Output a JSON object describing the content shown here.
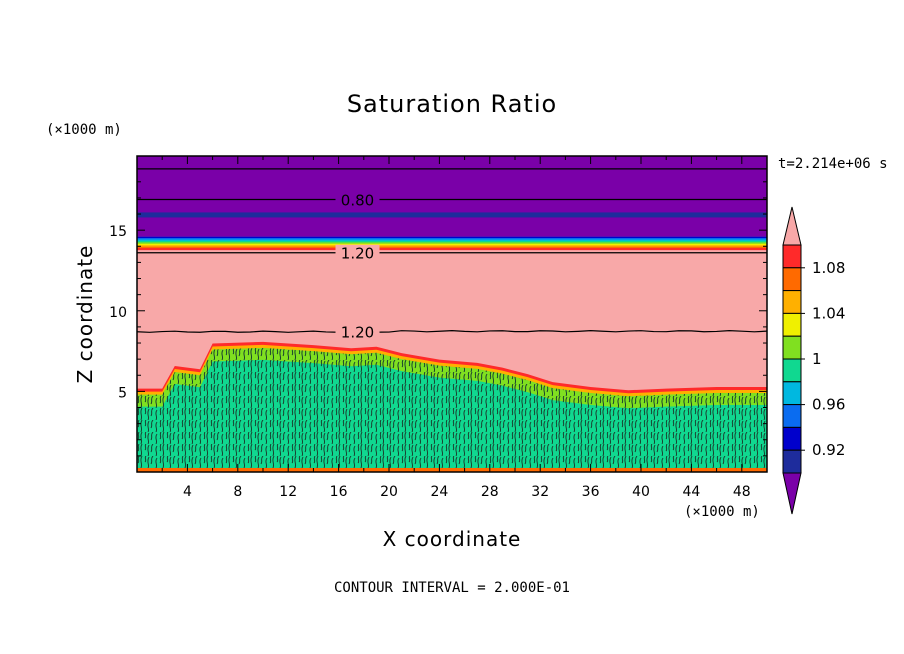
{
  "chart_data": {
    "type": "heatmap",
    "title": "Saturation Ratio",
    "xlabel": "X coordinate",
    "ylabel": "Z coordinate",
    "x_unit": "(×1000 m)",
    "z_unit": "(×1000 m)",
    "xlim": [
      0,
      50
    ],
    "ylim": [
      0,
      19.6
    ],
    "x_ticks": [
      4,
      8,
      12,
      16,
      20,
      24,
      28,
      32,
      36,
      40,
      44,
      48
    ],
    "y_ticks": [
      5,
      10,
      15
    ],
    "time_label": "t=2.214e+06 s",
    "footer": "CONTOUR INTERVAL = 2.000E-01",
    "contour_labels": [
      {
        "text": "0.80",
        "x": 17.5,
        "z": 16.9
      },
      {
        "text": "1.20",
        "x": 17.5,
        "z": 13.6
      },
      {
        "text": "1.20",
        "x": 17.5,
        "z": 8.7
      }
    ],
    "fields": {
      "upper_dry_top_z": 19.6,
      "transition_z_top": 14.6,
      "transition_z_bottom": 13.8,
      "moist_layer_top_profile": [
        {
          "x": 0,
          "z": 4.8
        },
        {
          "x": 2,
          "z": 4.8
        },
        {
          "x": 3,
          "z": 6.2
        },
        {
          "x": 5,
          "z": 6.0
        },
        {
          "x": 6,
          "z": 7.6
        },
        {
          "x": 10,
          "z": 7.7
        },
        {
          "x": 14,
          "z": 7.5
        },
        {
          "x": 17,
          "z": 7.3
        },
        {
          "x": 19,
          "z": 7.4
        },
        {
          "x": 21,
          "z": 7.0
        },
        {
          "x": 24,
          "z": 6.6
        },
        {
          "x": 27,
          "z": 6.4
        },
        {
          "x": 29,
          "z": 6.1
        },
        {
          "x": 31,
          "z": 5.7
        },
        {
          "x": 33,
          "z": 5.2
        },
        {
          "x": 36,
          "z": 4.9
        },
        {
          "x": 39,
          "z": 4.7
        },
        {
          "x": 42,
          "z": 4.8
        },
        {
          "x": 46,
          "z": 4.9
        },
        {
          "x": 50,
          "z": 4.9
        }
      ]
    },
    "colorbar": {
      "labels": [
        "1.08",
        "1.04",
        "1",
        "0.96",
        "0.92"
      ],
      "colors": [
        "#7a00a8",
        "#1e2c9c",
        "#0000cc",
        "#0a6cf0",
        "#00b8e0",
        "#10d890",
        "#80e020",
        "#f0f000",
        "#ffb000",
        "#ff6a00",
        "#ff2a2a",
        "#f8a8a8"
      ]
    }
  }
}
